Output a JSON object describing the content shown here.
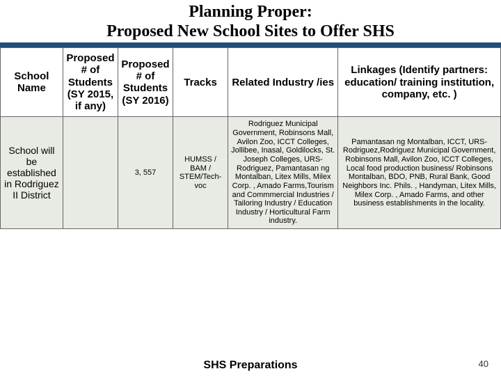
{
  "title": {
    "line1": "Planning Proper:",
    "line2": "Proposed New School Sites to Offer SHS",
    "underline_color": "#1f4e79",
    "title_fontsize": 24
  },
  "table": {
    "header_bg": "#ffffff",
    "body_bg": "#e8eae4",
    "border_color": "#666666",
    "header_fontsize": 15,
    "body_fontsize": 11,
    "columns": [
      {
        "key": "school_name",
        "label": "School Name",
        "width_pct": 12.5
      },
      {
        "key": "proposed_2015",
        "label": "Proposed # of Students (SY 2015, if any)",
        "width_pct": 11
      },
      {
        "key": "proposed_2016",
        "label": "Proposed # of Students (SY 2016)",
        "width_pct": 11
      },
      {
        "key": "tracks",
        "label": "Tracks",
        "width_pct": 11
      },
      {
        "key": "industry",
        "label": "Related Industry /ies",
        "width_pct": 22
      },
      {
        "key": "linkages",
        "label": "Linkages (Identify partners: education/ training institution, company, etc. )",
        "width_pct": 32.5
      }
    ],
    "rows": [
      {
        "school_name": "School will be established in Rodriguez II District",
        "proposed_2015": "",
        "proposed_2016": "3, 557",
        "tracks": "HUMSS / BAM / STEM/Tech-voc",
        "industry": "Rodriguez Municipal Government, Robinsons Mall, Avilon Zoo, ICCT Colleges, Jollibee, Inasal, Goldilocks, St. Joseph Colleges, URS-Rodriguez, Pamantasan ng Montalban, Litex Mills, Milex Corp. , Amado Farms,Tourism and Commmercial Industries / Tailoring Industry / Education Industry / Horticultural Farm industry.",
        "linkages": "Pamantasan ng Montalban, ICCT, URS-Rodriguez,Rodriguez Municipal Government, Robinsons Mall, Avilon Zoo, ICCT Colleges, Local food production business/ Robinsons Montalban, BDO, PNB, Rural Bank, Good Neighbors Inc. Phils. , Handyman, Litex Mills, Milex Corp. , Amado Farms, and other business establishments in the locality."
      }
    ]
  },
  "footer": {
    "text": "SHS Preparations",
    "fontsize": 16
  },
  "page_number": "40"
}
